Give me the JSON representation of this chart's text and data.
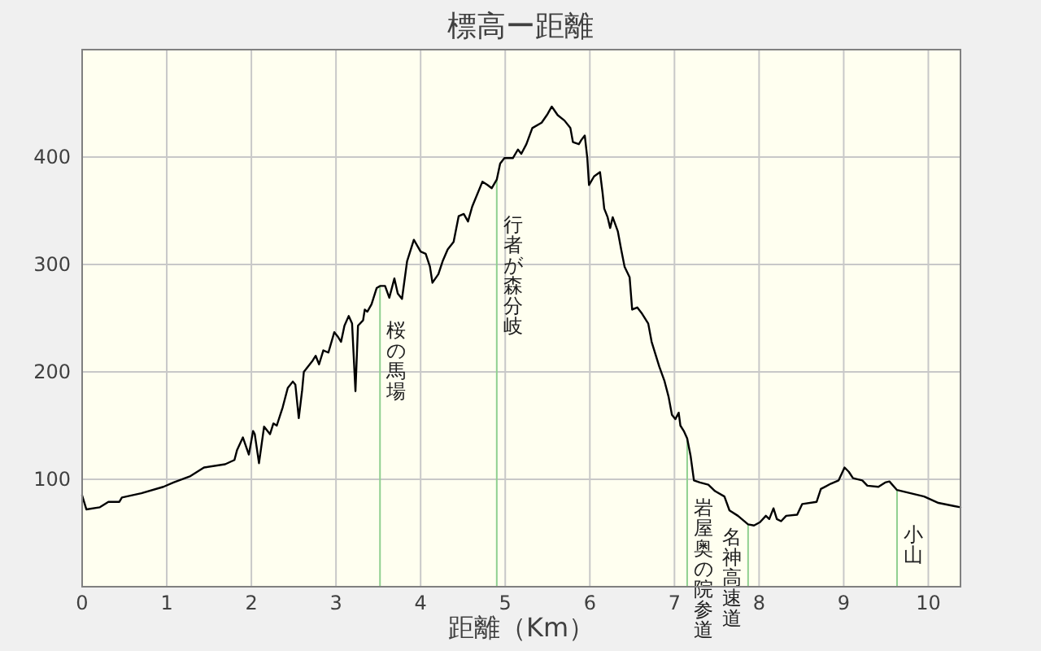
{
  "chart_data": {
    "type": "line",
    "title": "標高ー距離",
    "xlabel": "距離（Km）",
    "x": [
      0,
      0.05,
      0.21,
      0.31,
      0.44,
      0.47,
      0.7,
      0.96,
      1.08,
      1.28,
      1.44,
      1.69,
      1.8,
      1.83,
      1.9,
      1.97,
      2.02,
      2.04,
      2.09,
      2.15,
      2.22,
      2.26,
      2.3,
      2.37,
      2.43,
      2.49,
      2.52,
      2.56,
      2.6,
      2.62,
      2.72,
      2.76,
      2.8,
      2.85,
      2.91,
      2.98,
      3.02,
      3.06,
      3.1,
      3.15,
      3.19,
      3.23,
      3.26,
      3.32,
      3.34,
      3.37,
      3.42,
      3.48,
      3.52,
      3.58,
      3.63,
      3.69,
      3.73,
      3.78,
      3.84,
      3.92,
      4.0,
      4.06,
      4.11,
      4.14,
      4.21,
      4.26,
      4.32,
      4.39,
      4.45,
      4.51,
      4.56,
      4.61,
      4.73,
      4.79,
      4.84,
      4.9,
      4.94,
      4.99,
      5.09,
      5.15,
      5.19,
      5.25,
      5.32,
      5.43,
      5.5,
      5.55,
      5.62,
      5.7,
      5.77,
      5.8,
      5.87,
      5.9,
      5.94,
      5.97,
      5.99,
      6.05,
      6.12,
      6.15,
      6.17,
      6.21,
      6.24,
      6.27,
      6.33,
      6.37,
      6.41,
      6.47,
      6.5,
      6.56,
      6.61,
      6.69,
      6.73,
      6.82,
      6.88,
      6.93,
      6.97,
      7.01,
      7.05,
      7.07,
      7.11,
      7.15,
      7.19,
      7.23,
      7.3,
      7.4,
      7.48,
      7.59,
      7.65,
      7.75,
      7.87,
      7.94,
      8.01,
      8.08,
      8.12,
      8.17,
      8.21,
      8.26,
      8.32,
      8.45,
      8.51,
      8.68,
      8.73,
      8.85,
      8.94,
      9.01,
      9.06,
      9.11,
      9.22,
      9.28,
      9.41,
      9.49,
      9.54,
      9.63,
      9.79,
      9.95,
      10.12,
      10.31,
      10.38
    ],
    "values": [
      85,
      72,
      74,
      79,
      79,
      83,
      87,
      93,
      97,
      103,
      111,
      114,
      118,
      127,
      139,
      123,
      145,
      142,
      115,
      149,
      142,
      152,
      150,
      167,
      185,
      191,
      188,
      157,
      183,
      200,
      210,
      215,
      207,
      220,
      218,
      237,
      233,
      228,
      243,
      252,
      245,
      182,
      243,
      248,
      258,
      256,
      263,
      278,
      280,
      280,
      269,
      287,
      273,
      268,
      303,
      323,
      312,
      310,
      298,
      283,
      291,
      303,
      314,
      321,
      345,
      347,
      340,
      354,
      377,
      374,
      371,
      379,
      394,
      399,
      399,
      407,
      403,
      412,
      427,
      432,
      440,
      447,
      439,
      434,
      427,
      414,
      412,
      416,
      420,
      399,
      374,
      382,
      386,
      367,
      352,
      344,
      334,
      344,
      331,
      314,
      298,
      288,
      258,
      260,
      255,
      245,
      228,
      205,
      192,
      177,
      160,
      156,
      162,
      150,
      145,
      138,
      122,
      99,
      97,
      95,
      89,
      84,
      71,
      66,
      58,
      57,
      60,
      66,
      63,
      73,
      63,
      61,
      66,
      67,
      77,
      79,
      91,
      96,
      99,
      111,
      107,
      101,
      99,
      94,
      93,
      97,
      98,
      90,
      87,
      84,
      78,
      75,
      74
    ],
    "color": "#000000",
    "xlim": [
      0,
      10.38
    ],
    "ylim": [
      0,
      500
    ],
    "xticks": [
      0,
      1,
      2,
      3,
      4,
      5,
      6,
      7,
      8,
      9,
      10
    ],
    "yticks": [
      100,
      200,
      300,
      400
    ],
    "grid": true,
    "ref_lines": [
      {
        "axis": "x",
        "value": 3.52,
        "label": "桜の馬場",
        "color": "#90d090"
      },
      {
        "axis": "x",
        "value": 4.9,
        "label": "行者が森分岐",
        "color": "#90d090"
      },
      {
        "axis": "x",
        "value": 7.15,
        "label": "岩屋奥の院参道",
        "color": "#90d090"
      },
      {
        "axis": "x",
        "value": 7.87,
        "label": "名神高速道",
        "color": "#90d090"
      },
      {
        "axis": "x",
        "value": 9.63,
        "label": "小山",
        "color": "#90d090"
      }
    ]
  }
}
